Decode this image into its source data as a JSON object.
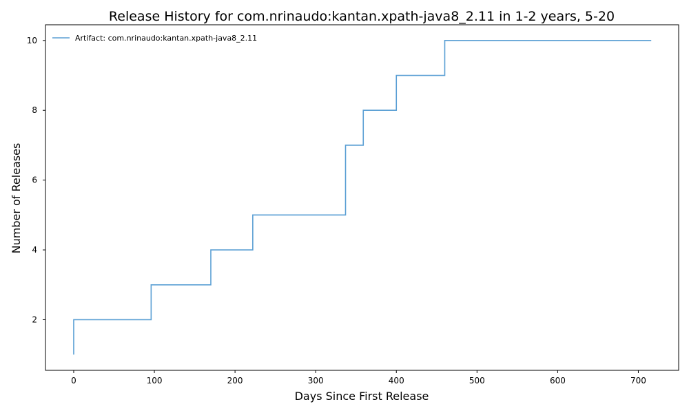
{
  "chart_data": {
    "type": "line",
    "drawstyle": "steps-post",
    "title": "Release History for com.nrinaudo:kantan.xpath-java8_2.11 in 1-2 years, 5-20",
    "xlabel": "Days Since First Release",
    "ylabel": "Number of Releases",
    "xlim": [
      -35,
      750
    ],
    "ylim": [
      0.55,
      10.45
    ],
    "xticks": [
      0,
      100,
      200,
      300,
      400,
      500,
      600,
      700
    ],
    "yticks": [
      2,
      4,
      6,
      8,
      10
    ],
    "grid": false,
    "legend_position": "top-left",
    "series": [
      {
        "name": "Artifact: com.nrinaudo:kantan.xpath-java8_2.11",
        "color": "#5a9fd4",
        "x": [
          0,
          0,
          96,
          170,
          222,
          337,
          359,
          400,
          460,
          716
        ],
        "y": [
          1,
          2,
          3,
          4,
          5,
          7,
          8,
          9,
          10,
          10
        ]
      }
    ]
  }
}
